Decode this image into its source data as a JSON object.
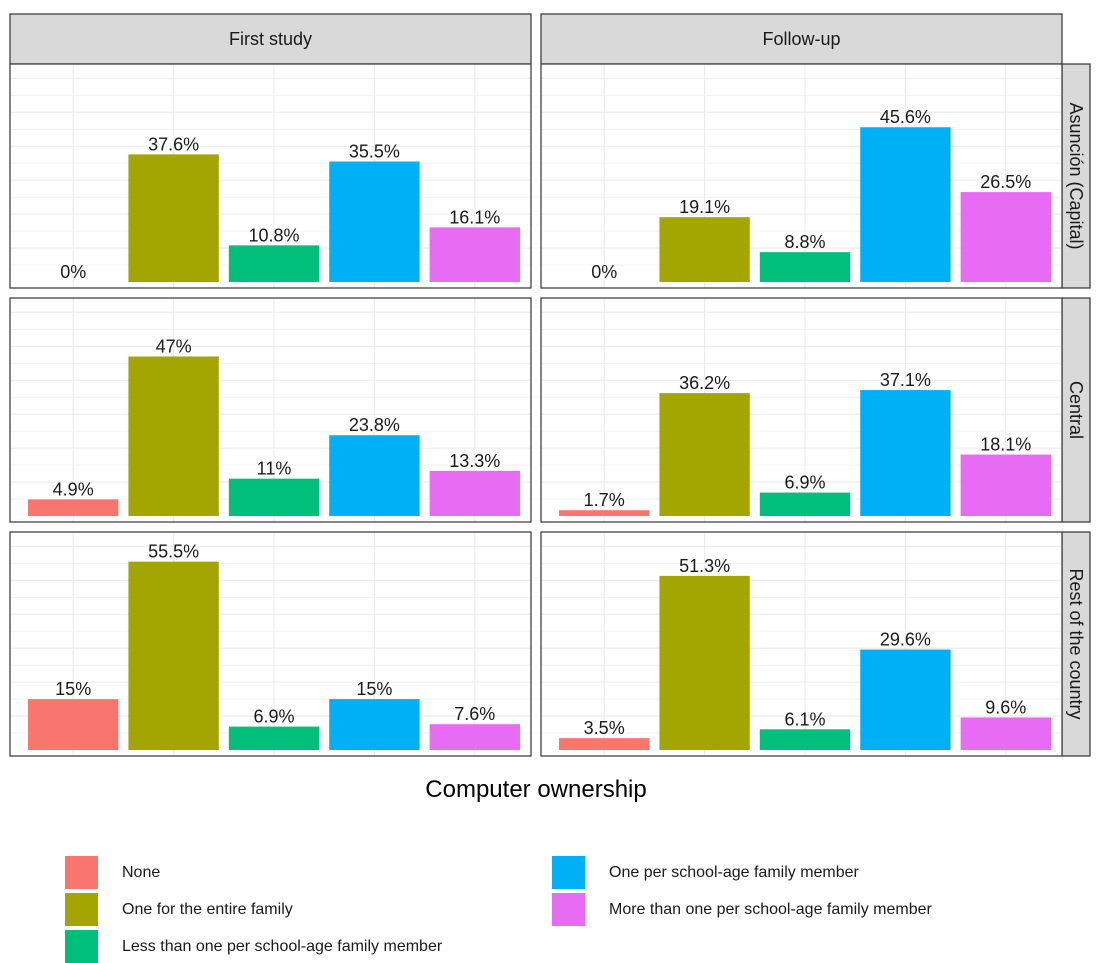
{
  "chart_data": {
    "type": "bar",
    "xlabel": "Computer ownership",
    "ylabel": "",
    "ylim": [
      0,
      60
    ],
    "grid": true,
    "legend_position": "bottom",
    "columns": [
      "First study",
      "Follow-up"
    ],
    "rows": [
      "Asunción (Capital)",
      "Central",
      "Rest of the country"
    ],
    "categories": [
      "None",
      "One for the entire family",
      "Less than one per school-age family member",
      "One per school-age family member",
      "More than one per school-age family member"
    ],
    "colors": [
      "#F8766D",
      "#A3A500",
      "#00BF7D",
      "#00B0F6",
      "#E76BF3"
    ],
    "panels": [
      {
        "column": "First study",
        "row": "Asunción (Capital)",
        "values": [
          0,
          37.6,
          10.8,
          35.5,
          16.1
        ],
        "labels": [
          "0%",
          "37.6%",
          "10.8%",
          "35.5%",
          "16.1%"
        ]
      },
      {
        "column": "Follow-up",
        "row": "Asunción (Capital)",
        "values": [
          0,
          19.1,
          8.8,
          45.6,
          26.5
        ],
        "labels": [
          "0%",
          "19.1%",
          "8.8%",
          "45.6%",
          "26.5%"
        ]
      },
      {
        "column": "First study",
        "row": "Central",
        "values": [
          4.9,
          47,
          11,
          23.8,
          13.3
        ],
        "labels": [
          "4.9%",
          "47%",
          "11%",
          "23.8%",
          "13.3%"
        ]
      },
      {
        "column": "Follow-up",
        "row": "Central",
        "values": [
          1.7,
          36.2,
          6.9,
          37.1,
          18.1
        ],
        "labels": [
          "1.7%",
          "36.2%",
          "6.9%",
          "37.1%",
          "18.1%"
        ]
      },
      {
        "column": "First study",
        "row": "Rest of the country",
        "values": [
          15,
          55.5,
          6.9,
          15,
          7.6
        ],
        "labels": [
          "15%",
          "55.5%",
          "6.9%",
          "15%",
          "7.6%"
        ]
      },
      {
        "column": "Follow-up",
        "row": "Rest of the country",
        "values": [
          3.5,
          51.3,
          6.1,
          29.6,
          9.6
        ],
        "labels": [
          "3.5%",
          "51.3%",
          "6.1%",
          "29.6%",
          "9.6%"
        ]
      }
    ]
  }
}
